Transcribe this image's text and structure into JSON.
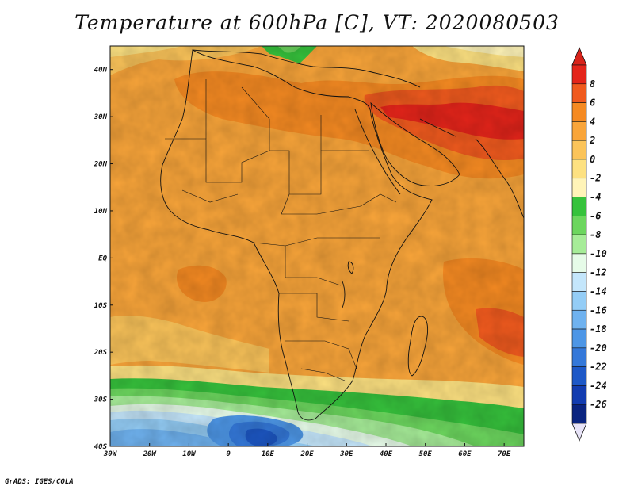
{
  "title": "Temperature at 600hPa [C], VT: 2020080503",
  "credit": "GrADS: IGES/COLA",
  "map": {
    "lon_range": [
      -30,
      75
    ],
    "lat_range": [
      -40,
      45
    ],
    "lon_ticks": [
      "30W",
      "20W",
      "10W",
      "0",
      "10E",
      "20E",
      "30E",
      "40E",
      "50E",
      "60E",
      "70E"
    ],
    "lat_ticks": [
      "40N",
      "30N",
      "20N",
      "10N",
      "EQ",
      "10S",
      "20S",
      "30S",
      "40S"
    ]
  },
  "colorbar": {
    "labels": [
      "8",
      "6",
      "4",
      "2",
      "0",
      "-2",
      "-4",
      "-6",
      "-8",
      "-10",
      "-12",
      "-14",
      "-16",
      "-18",
      "-20",
      "-22",
      "-24",
      "-26"
    ],
    "colors": [
      "#e4241a",
      "#f05a1e",
      "#f58a22",
      "#f9a53a",
      "#fbc45a",
      "#fde181",
      "#fff4b8",
      "#36c23c",
      "#6cd65e",
      "#a6ec98",
      "#e6fbe8",
      "#c4e6fb",
      "#94cdf6",
      "#6fb2ef",
      "#4d96e6",
      "#3478d9",
      "#1d58c7",
      "#123cb0",
      "#0a2480"
    ],
    "top_cap": "#d8231a",
    "bottom_cap": "#e8e4f8"
  }
}
